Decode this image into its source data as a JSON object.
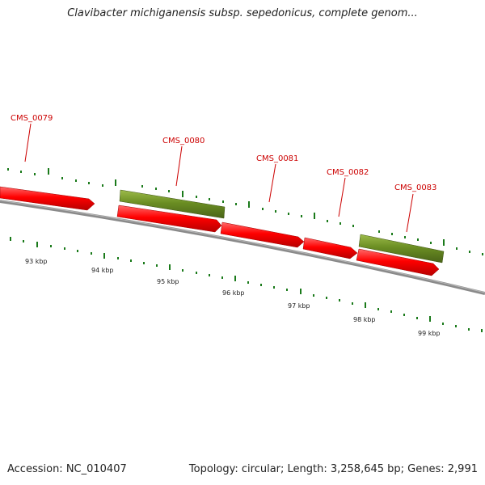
{
  "header": {
    "title": "Clavibacter michiganensis subsp. sepedonicus, complete genom..."
  },
  "footer": {
    "accession": "Accession: NC_010407",
    "summary": "Topology: circular; Length: 3,258,645 bp; Genes: 2,991"
  },
  "colors": {
    "forward_gene": "#ff0000",
    "green_gene": "#6b8e23",
    "backbone": "#808080",
    "tick": "#1a7a1a",
    "label": "#cc0000"
  },
  "scale_labels": [
    "93 kbp",
    "94 kbp",
    "95 kbp",
    "96 kbp",
    "97 kbp",
    "98 kbp",
    "99 kbp"
  ],
  "genes": [
    {
      "name": "",
      "track": "red"
    },
    {
      "name": "CMS_0080",
      "track": "green"
    },
    {
      "name": "",
      "track": "red"
    },
    {
      "name": "",
      "track": "red"
    },
    {
      "name": "",
      "track": "red"
    },
    {
      "name": "CMS_0083",
      "track": "green"
    },
    {
      "name": "",
      "track": "red"
    }
  ],
  "gene_labels": [
    "CMS_0079",
    "CMS_0080",
    "CMS_0081",
    "CMS_0082",
    "CMS_0083"
  ]
}
